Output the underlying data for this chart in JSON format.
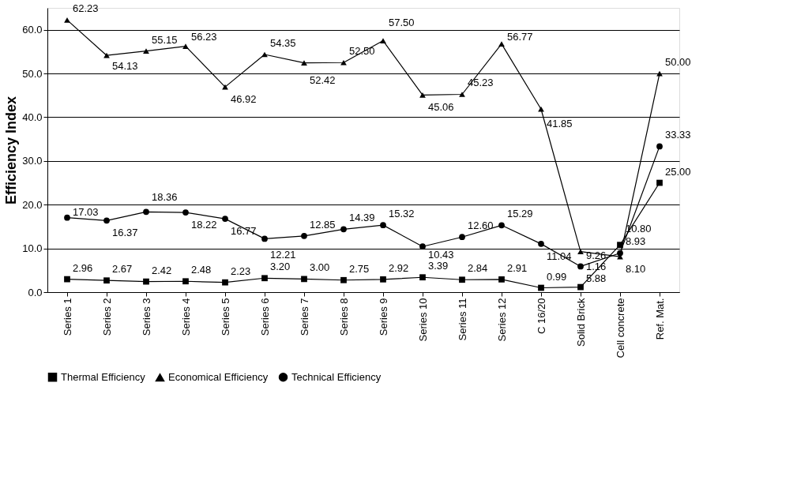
{
  "chart_data": {
    "type": "line",
    "ylabel": "Efficiency Index",
    "categories": [
      "Series 1",
      "Series 2",
      "Series 3",
      "Series 4",
      "Series 5",
      "Series 6",
      "Series 7",
      "Series 8",
      "Series 9",
      "Series 10",
      "Series 11",
      "Series 12",
      "C 16/20",
      "Solid Brick",
      "Cell concrete",
      "Ref. Mat."
    ],
    "series": [
      {
        "name": "Thermal Efficiency",
        "color": "#000000",
        "marker": "square",
        "values": [
          2.96,
          2.67,
          2.42,
          2.48,
          2.23,
          3.2,
          3.0,
          2.75,
          2.92,
          3.39,
          2.84,
          2.91,
          0.99,
          1.16,
          10.8,
          25.0
        ],
        "value_labels": [
          "2.96",
          "2.67",
          "2.42",
          "2.48",
          "2.23",
          "3.20",
          "3.00",
          "2.75",
          "2.92",
          "3.39",
          "2.84",
          "2.91",
          "0.99",
          "1.16",
          "10.80",
          "25.00"
        ]
      },
      {
        "name": "Economical Efficiency",
        "color": "#000000",
        "marker": "triangle",
        "values": [
          62.23,
          54.13,
          55.15,
          56.23,
          46.92,
          54.35,
          52.42,
          52.5,
          57.5,
          45.06,
          45.23,
          56.77,
          41.85,
          9.26,
          8.1,
          50.0
        ],
        "value_labels": [
          "62.23",
          "54.13",
          "55.15",
          "56.23",
          "46.92",
          "54.35",
          "52.42",
          "52.50",
          "57.50",
          "45.06",
          "45.23",
          "56.77",
          "41.85",
          "9.26",
          "8.10",
          "50.00"
        ]
      },
      {
        "name": "Technical Efficiency",
        "color": "#000000",
        "marker": "circle",
        "values": [
          17.03,
          16.37,
          18.36,
          18.22,
          16.77,
          12.21,
          12.85,
          14.39,
          15.32,
          10.43,
          12.6,
          15.29,
          11.04,
          5.88,
          8.93,
          33.33
        ],
        "value_labels": [
          "17.03",
          "16.37",
          "18.36",
          "18.22",
          "16.77",
          "12.21",
          "12.85",
          "14.39",
          "15.32",
          "10.43",
          "12.60",
          "15.29",
          "11.04",
          "5.88",
          "8.93",
          "33.33"
        ]
      }
    ],
    "ylim": [
      0,
      65
    ],
    "yticks": [
      {
        "value": 0,
        "label": "0.0"
      },
      {
        "value": 10,
        "label": "10.0"
      },
      {
        "value": 20,
        "label": "20.0"
      },
      {
        "value": 30,
        "label": "30.0"
      },
      {
        "value": 40,
        "label": "40.0"
      },
      {
        "value": 50,
        "label": "50.0"
      },
      {
        "value": 60,
        "label": "60.0"
      }
    ],
    "grid": "y",
    "legend": "bottom",
    "data_labels": true,
    "line_style": "solid"
  }
}
